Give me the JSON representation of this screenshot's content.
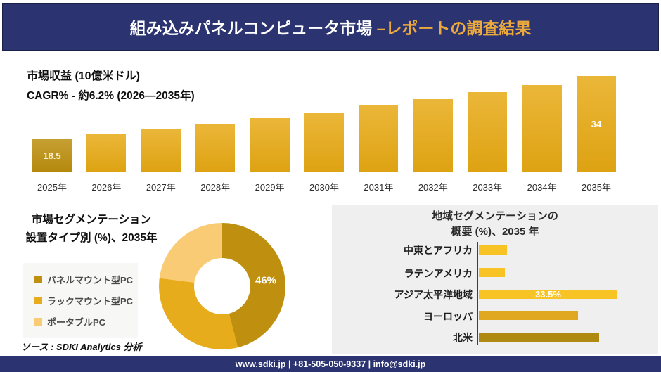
{
  "header": {
    "title_main": "組み込みパネルコンピュータ市場 ",
    "title_accent": "–レポートの調査結果",
    "bg_color": "#2B3470",
    "accent_color": "#EDAA3C"
  },
  "footer": {
    "contact": "www.sdki.jp | +81-505-050-9337 | info@sdki.jp"
  },
  "chart_data": [
    {
      "type": "bar",
      "title": "市場収益 (10億米ドル)",
      "subtitle": "CAGR% - 約6.2% (2026―2035年)",
      "categories": [
        "2025年",
        "2026年",
        "2027年",
        "2028年",
        "2029年",
        "2030年",
        "2031年",
        "2032年",
        "2033年",
        "2034年",
        "2035年"
      ],
      "values": [
        18.5,
        19.6,
        20.9,
        22.2,
        23.5,
        25.0,
        26.6,
        28.2,
        30.0,
        31.8,
        34.0
      ],
      "data_labels": {
        "first": "18.5",
        "last": "34"
      },
      "bar_color": "#E7A913",
      "first_bar_color": "#BC8E0D",
      "ylim": [
        18.5,
        34
      ],
      "grid": false,
      "legend": false
    },
    {
      "type": "pie",
      "title_line1": "市場セグメンテーション",
      "title_line2": "設置タイプ別 (%)、2035年",
      "segments": [
        {
          "label": "パネルマウント型PC",
          "value": 46,
          "color": "#BF8F10",
          "data_label": "46%"
        },
        {
          "label": "ラックマウント型PC",
          "value": 31,
          "color": "#E6AC1B",
          "data_label": ""
        },
        {
          "label": "ポータブルPC",
          "value": 23,
          "color": "#F8CB74",
          "data_label": ""
        }
      ],
      "legend_position": "left",
      "source": "ソース : SDKI Analytics 分析"
    },
    {
      "type": "bar-horizontal",
      "title_line1": "地域セグメンテーションの",
      "title_line2": "概要 (%)、2035 年",
      "categories": [
        "中東とアフリカ",
        "ラテンアメリカ",
        "アジア太平洋地域",
        "ヨーロッパ",
        "北米"
      ],
      "values": [
        6.8,
        6.3,
        33.5,
        24,
        29
      ],
      "colors": [
        "#F8C324",
        "#F8C324",
        "#F8C324",
        "#DFA820",
        "#AF8A11"
      ],
      "data_labels": [
        "",
        "",
        "33.5%",
        "",
        ""
      ],
      "panel_bg": "#EFEFEF",
      "grid": false
    }
  ]
}
